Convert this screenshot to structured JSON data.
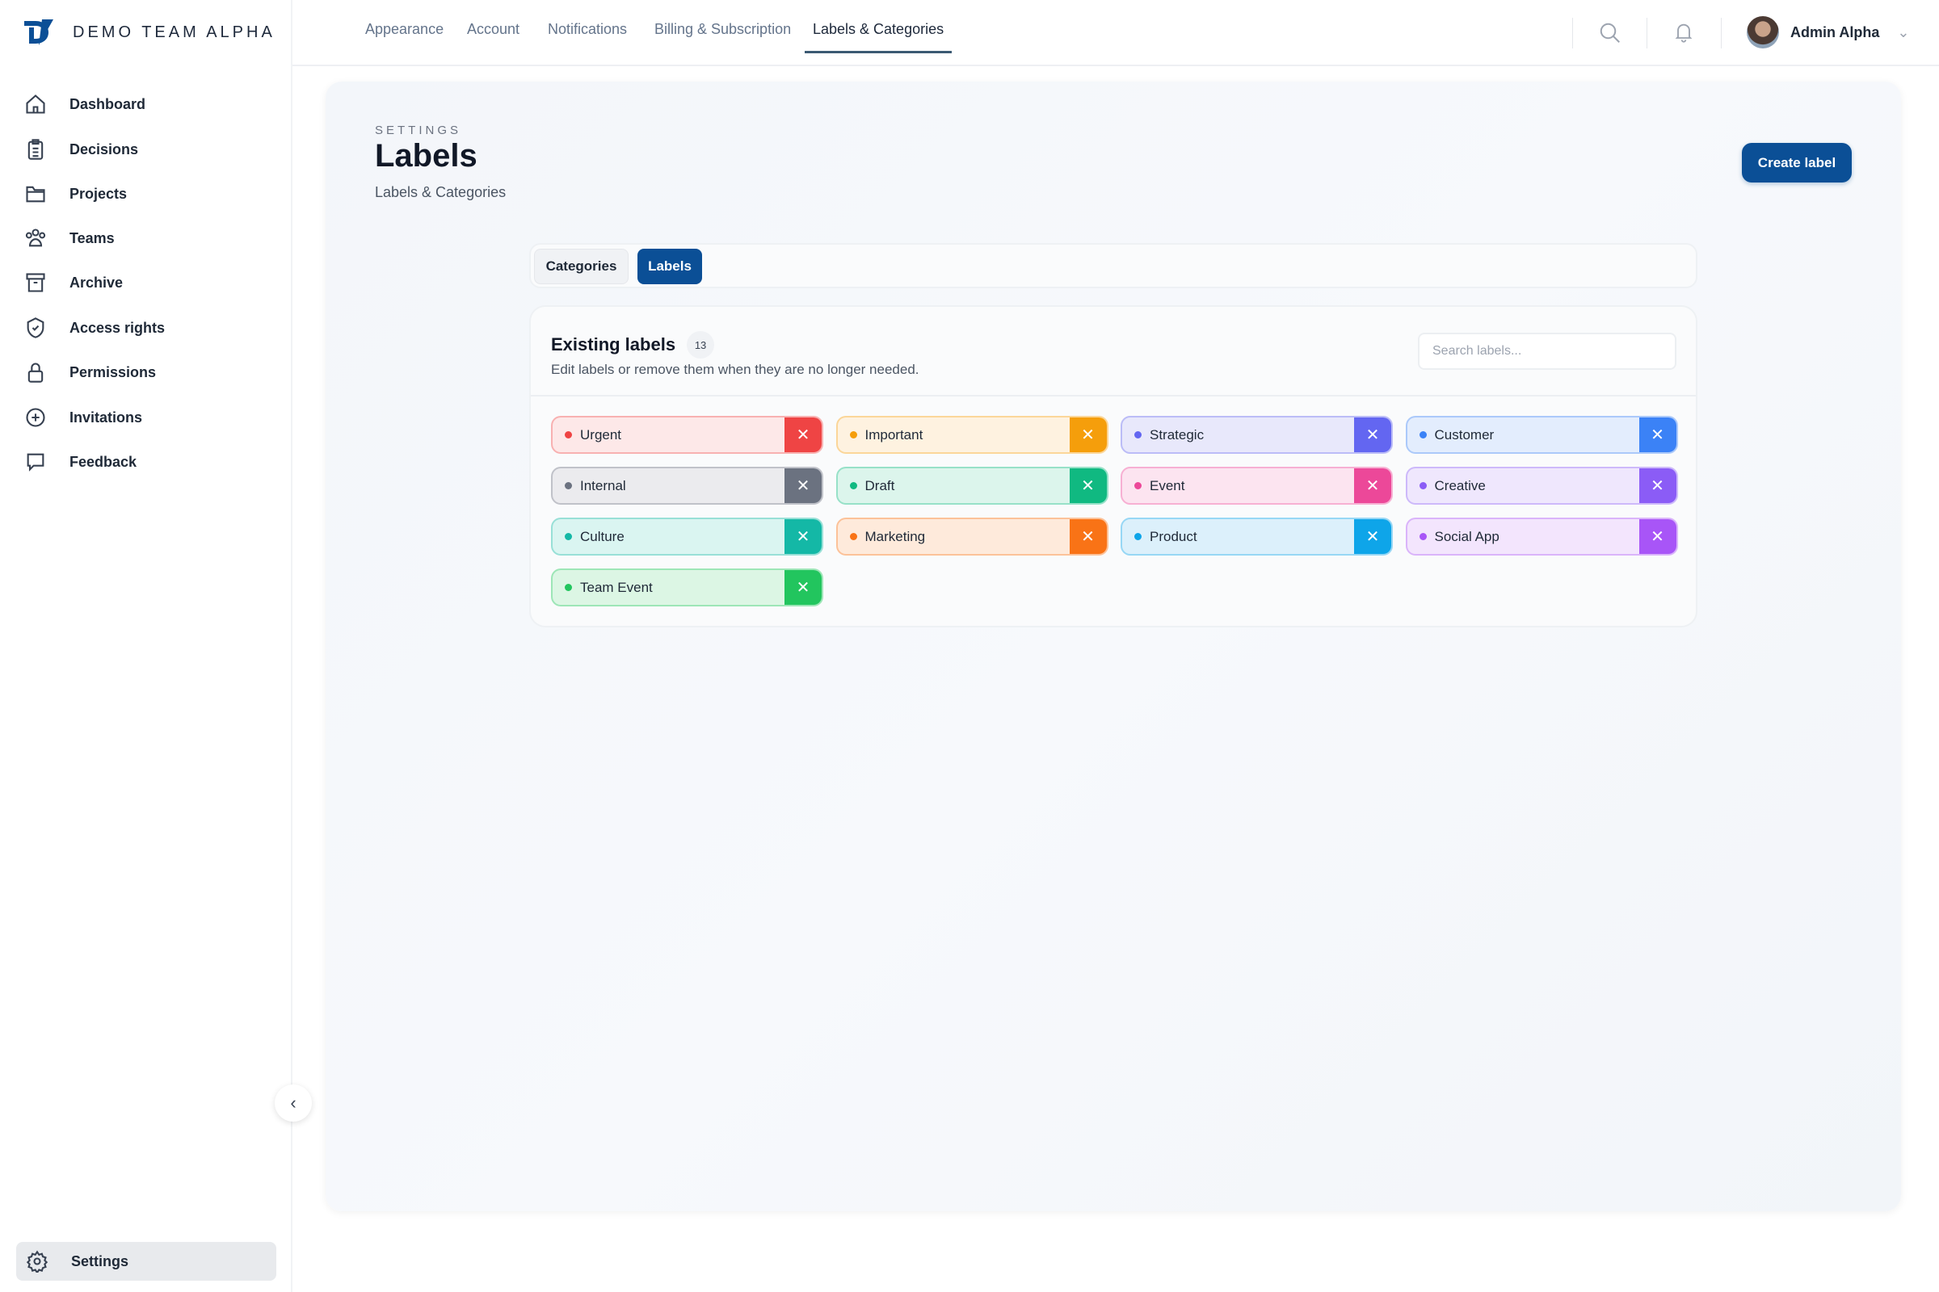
{
  "brand": {
    "name": "DEMO TEAM ALPHA",
    "accent": "#0b4f96"
  },
  "sidebar": {
    "items": [
      {
        "label": "Dashboard",
        "icon": "home-icon"
      },
      {
        "label": "Decisions",
        "icon": "clipboard-icon"
      },
      {
        "label": "Projects",
        "icon": "folder-icon"
      },
      {
        "label": "Teams",
        "icon": "users-icon"
      },
      {
        "label": "Archive",
        "icon": "archive-icon"
      },
      {
        "label": "Access rights",
        "icon": "shield-check-icon"
      },
      {
        "label": "Permissions",
        "icon": "lock-icon"
      },
      {
        "label": "Invitations",
        "icon": "plus-circle-icon"
      },
      {
        "label": "Feedback",
        "icon": "chat-icon"
      }
    ],
    "settings": {
      "label": "Settings",
      "icon": "gear-icon"
    }
  },
  "topnav": {
    "tabs": [
      "Appearance",
      "Account",
      "Notifications",
      "Billing & Subscription",
      "Labels & Categories"
    ],
    "active": "Labels & Categories"
  },
  "user": {
    "name": "Admin Alpha"
  },
  "page": {
    "eyebrow": "SETTINGS",
    "title": "Labels",
    "subtitle": "Labels & Categories",
    "create_label": "Create label"
  },
  "segments": {
    "categories": "Categories",
    "labels": "Labels",
    "active": "Labels"
  },
  "card": {
    "title": "Existing labels",
    "count": "13",
    "subtitle": "Edit labels or remove them when they are no longer needed.",
    "search_placeholder": "Search labels..."
  },
  "labels": [
    {
      "name": "Urgent",
      "color": "#ef4444",
      "bg": "#fde8e8"
    },
    {
      "name": "Important",
      "color": "#f59e0b",
      "bg": "#fef2e0"
    },
    {
      "name": "Strategic",
      "color": "#6366f1",
      "bg": "#e8e8fb"
    },
    {
      "name": "Customer",
      "color": "#3b82f6",
      "bg": "#e3edfd"
    },
    {
      "name": "Internal",
      "color": "#6b7280",
      "bg": "#ebebee"
    },
    {
      "name": "Draft",
      "color": "#10b981",
      "bg": "#dcf5ec"
    },
    {
      "name": "Event",
      "color": "#ec4899",
      "bg": "#fce4f0"
    },
    {
      "name": "Creative",
      "color": "#8b5cf6",
      "bg": "#efe7fd"
    },
    {
      "name": "Culture",
      "color": "#14b8a6",
      "bg": "#daf5f1"
    },
    {
      "name": "Marketing",
      "color": "#f97316",
      "bg": "#feeadb"
    },
    {
      "name": "Product",
      "color": "#0ea5e9",
      "bg": "#dcf0fb"
    },
    {
      "name": "Social App",
      "color": "#a855f7",
      "bg": "#f3e5fd"
    },
    {
      "name": "Team Event",
      "color": "#22c55e",
      "bg": "#dcf6e4"
    }
  ]
}
